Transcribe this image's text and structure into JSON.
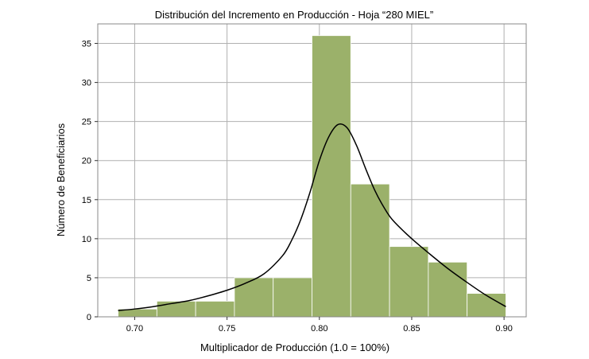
{
  "chart_data": {
    "type": "bar",
    "title": "Distribución del Incremento en Producción - Hoja “280 MIEL”",
    "xlabel": "Multiplicador de Producción (1.0 = 100%)",
    "ylabel": "Número de Beneficiarios",
    "xlim": [
      0.68,
      0.912
    ],
    "ylim": [
      0,
      37.5
    ],
    "xticks": [
      "0.70",
      "0.75",
      "0.80",
      "0.85",
      "0.90"
    ],
    "yticks": [
      "0",
      "5",
      "10",
      "15",
      "20",
      "25",
      "30",
      "35"
    ],
    "grid": true,
    "bar_color": "#9bb16a",
    "bins": [
      {
        "x0": 0.691,
        "x1": 0.712,
        "count": 1
      },
      {
        "x0": 0.712,
        "x1": 0.733,
        "count": 2
      },
      {
        "x0": 0.733,
        "x1": 0.754,
        "count": 2
      },
      {
        "x0": 0.754,
        "x1": 0.775,
        "count": 5
      },
      {
        "x0": 0.775,
        "x1": 0.796,
        "count": 5
      },
      {
        "x0": 0.796,
        "x1": 0.817,
        "count": 36
      },
      {
        "x0": 0.817,
        "x1": 0.838,
        "count": 17
      },
      {
        "x0": 0.838,
        "x1": 0.859,
        "count": 9
      },
      {
        "x0": 0.859,
        "x1": 0.88,
        "count": 7
      },
      {
        "x0": 0.88,
        "x1": 0.901,
        "count": 3
      }
    ],
    "kde": {
      "color": "#000000",
      "points": [
        [
          0.691,
          0.8
        ],
        [
          0.7,
          1.0
        ],
        [
          0.71,
          1.3
        ],
        [
          0.72,
          1.7
        ],
        [
          0.73,
          2.1
        ],
        [
          0.74,
          2.7
        ],
        [
          0.75,
          3.4
        ],
        [
          0.76,
          4.3
        ],
        [
          0.77,
          5.5
        ],
        [
          0.78,
          7.8
        ],
        [
          0.785,
          9.8
        ],
        [
          0.79,
          12.5
        ],
        [
          0.795,
          16.0
        ],
        [
          0.8,
          20.0
        ],
        [
          0.805,
          23.0
        ],
        [
          0.81,
          24.6
        ],
        [
          0.815,
          24.2
        ],
        [
          0.82,
          22.0
        ],
        [
          0.825,
          19.0
        ],
        [
          0.83,
          16.2
        ],
        [
          0.835,
          14.0
        ],
        [
          0.84,
          12.3
        ],
        [
          0.85,
          10.0
        ],
        [
          0.86,
          8.0
        ],
        [
          0.87,
          6.1
        ],
        [
          0.88,
          4.4
        ],
        [
          0.89,
          2.8
        ],
        [
          0.901,
          1.3
        ]
      ]
    }
  }
}
